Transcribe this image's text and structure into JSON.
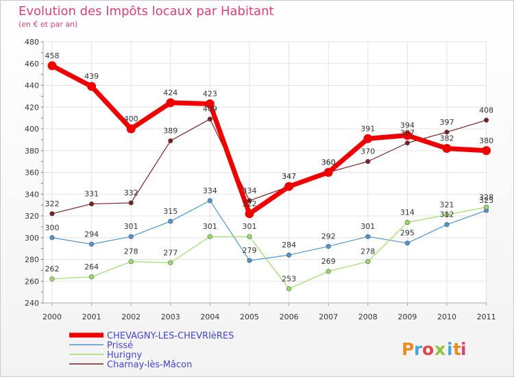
{
  "chart_data": {
    "type": "line",
    "title": "Evolution des Impôts locaux par Habitant",
    "subtitle": "(en € et par an)",
    "xlabel": "",
    "ylabel": "",
    "ylim": [
      240,
      480
    ],
    "yticks": [
      240,
      260,
      280,
      300,
      320,
      340,
      360,
      380,
      400,
      420,
      440,
      460,
      480
    ],
    "categories": [
      "2000",
      "2001",
      "2002",
      "2003",
      "2004",
      "2005",
      "2006",
      "2007",
      "2008",
      "2009",
      "2010",
      "2011"
    ],
    "grid": true,
    "legend": "bottom-left",
    "series": [
      {
        "name": "CHEVAGNY-LES-CHEVRIèRES",
        "color": "#ee0000",
        "values": [
          458,
          439,
          400,
          424,
          423,
          322,
          347,
          360,
          391,
          394,
          382,
          380
        ]
      },
      {
        "name": "Prissé",
        "color": "#4e94cf",
        "values": [
          300,
          294,
          301,
          315,
          334,
          279,
          284,
          292,
          301,
          295,
          312,
          325
        ]
      },
      {
        "name": "Hurigny",
        "color": "#99dd66",
        "values": [
          262,
          264,
          278,
          277,
          301,
          301,
          253,
          269,
          278,
          314,
          321,
          328
        ]
      },
      {
        "name": "Charnay-lès-Mâcon",
        "color": "#772222",
        "values": [
          322,
          331,
          332,
          389,
          409,
          334,
          347,
          360,
          370,
          387,
          397,
          408
        ]
      }
    ]
  },
  "brand": {
    "logo_text": "Proxiti"
  }
}
